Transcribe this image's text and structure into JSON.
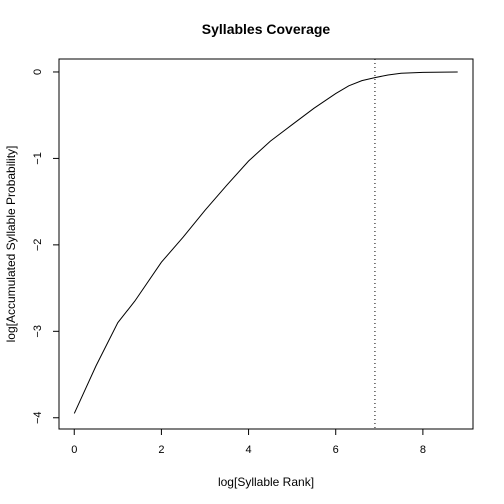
{
  "chart_data": {
    "type": "line",
    "title": "Syllables Coverage",
    "xlabel": "log[Syllable Rank]",
    "ylabel": "log[Accumulated Syllable Probability]",
    "xlim": [
      -0.35,
      9.15
    ],
    "ylim": [
      -4.13,
      0.15
    ],
    "x_ticks": [
      0,
      2,
      4,
      6,
      8
    ],
    "x_tick_labels": [
      "0",
      "2",
      "4",
      "6",
      "8"
    ],
    "y_ticks": [
      0,
      -1,
      -2,
      -3,
      -4
    ],
    "y_tick_labels": [
      "0",
      "−1",
      "−2",
      "−3",
      "−4"
    ],
    "grid": false,
    "series": [
      {
        "x": [
          0,
          0.5,
          1.0,
          1.39,
          2.0,
          2.5,
          3.0,
          3.5,
          4.0,
          4.5,
          5.0,
          5.5,
          6.0,
          6.3,
          6.6,
          6.9,
          7.2,
          7.5,
          8.0,
          8.5,
          8.8
        ],
        "values": [
          -3.95,
          -3.4,
          -2.9,
          -2.65,
          -2.2,
          -1.91,
          -1.6,
          -1.31,
          -1.03,
          -0.8,
          -0.61,
          -0.42,
          -0.25,
          -0.16,
          -0.1,
          -0.065,
          -0.035,
          -0.015,
          -0.005,
          -0.001,
          0.0
        ]
      }
    ],
    "reference_lines": [
      {
        "orientation": "vertical",
        "x": 6.9,
        "style": "dotted"
      }
    ]
  }
}
